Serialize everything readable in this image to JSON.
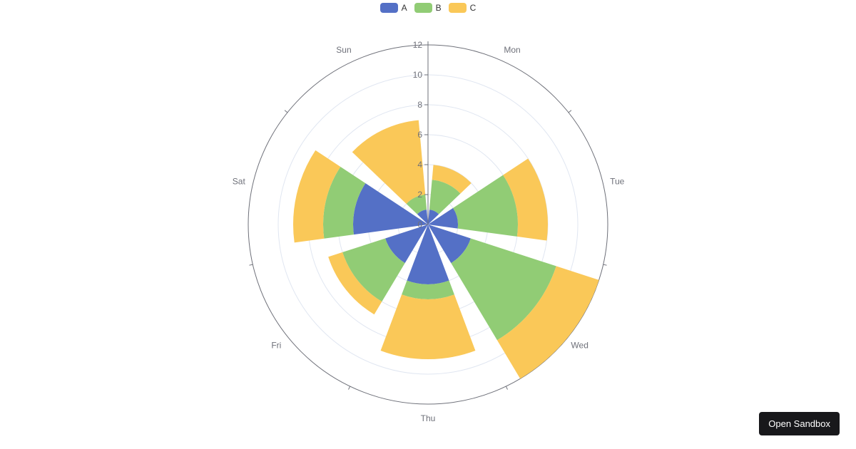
{
  "chart_data": {
    "type": "bar",
    "subtype": "polar-stacked-bar",
    "categories": [
      "Mon",
      "Tue",
      "Wed",
      "Thu",
      "Fri",
      "Sat",
      "Sun"
    ],
    "series": [
      {
        "name": "A",
        "values": [
          1,
          2,
          3,
          4,
          3,
          5,
          1
        ],
        "color": "#5470c6"
      },
      {
        "name": "B",
        "values": [
          2,
          4,
          6,
          1,
          3,
          2,
          1
        ],
        "color": "#91cc75"
      },
      {
        "name": "C",
        "values": [
          1,
          2,
          3,
          4,
          1,
          2,
          5
        ],
        "color": "#fac858"
      }
    ],
    "radial_axis": {
      "min": 0,
      "max": 12,
      "ticks": [
        0,
        2,
        4,
        6,
        8,
        10,
        12
      ]
    },
    "title": "",
    "legend_position": "top-center",
    "grid": true
  },
  "legend": {
    "items": [
      {
        "label": "A",
        "color": "#5470c6"
      },
      {
        "label": "B",
        "color": "#91cc75"
      },
      {
        "label": "C",
        "color": "#fac858"
      }
    ]
  },
  "button": {
    "open_sandbox": "Open Sandbox"
  }
}
